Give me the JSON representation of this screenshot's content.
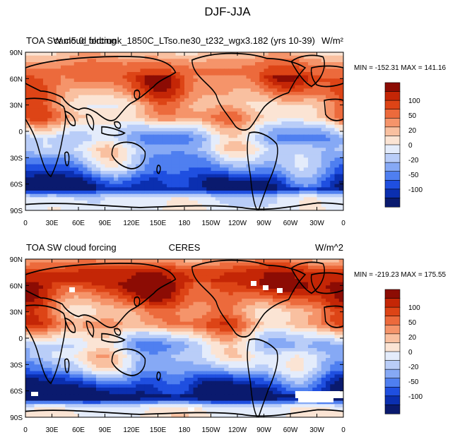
{
  "figure": {
    "title": "DJF-JJA"
  },
  "colors": {
    "levels": [
      "#0a1a6e",
      "#0b2fb0",
      "#1f4fe0",
      "#4f7ff0",
      "#86a9f5",
      "#b9cdf8",
      "#e4ecfb",
      "#fbe4d4",
      "#f9c0a0",
      "#f5946a",
      "#ec6a3c",
      "#dd4416",
      "#c42606",
      "#8c0c04"
    ],
    "coast": "#000000",
    "missing": "#ffffff"
  },
  "chart_data": [
    {
      "type": "heatmap",
      "left_title": "TOA SW cloud forcing",
      "center_title": "cam5.0_bldtrunk_1850C_LTso.ne30_t232_wgx3.182 (yrs 10-39)",
      "units": "W/m²",
      "min_max": "MIN = -152.31 MAX = 141.16",
      "x_ticks": [
        "0",
        "30E",
        "60E",
        "90E",
        "120E",
        "150E",
        "180",
        "150W",
        "120W",
        "90W",
        "60W",
        "30W",
        "0"
      ],
      "y_ticks": [
        "90N",
        "60N",
        "30N",
        "0",
        "30S",
        "60S",
        "90S"
      ],
      "xlim": [
        0,
        360
      ],
      "ylim": [
        -90,
        90
      ],
      "colorbar_labels": [
        "100",
        "50",
        "20",
        "0",
        "-20",
        "-50",
        "-100"
      ],
      "colorbar_range": [
        -130,
        130
      ],
      "zonal_profile": [
        {
          "lat": -90,
          "value": -5
        },
        {
          "lat": -75,
          "value": -15
        },
        {
          "lat": -65,
          "value": -115
        },
        {
          "lat": -55,
          "value": -95
        },
        {
          "lat": -45,
          "value": -60
        },
        {
          "lat": -35,
          "value": -40
        },
        {
          "lat": -20,
          "value": -15
        },
        {
          "lat": -8,
          "value": -40
        },
        {
          "lat": 5,
          "value": -5
        },
        {
          "lat": 15,
          "value": 40
        },
        {
          "lat": 30,
          "value": 30
        },
        {
          "lat": 45,
          "value": 60
        },
        {
          "lat": 60,
          "value": 80
        },
        {
          "lat": 75,
          "value": 60
        },
        {
          "lat": 90,
          "value": 20
        }
      ]
    },
    {
      "type": "heatmap",
      "left_title": "TOA SW cloud forcing",
      "center_title": "CERES",
      "units": "W/m^2",
      "min_max": "MIN = -219.23 MAX = 175.55",
      "x_ticks": [
        "0",
        "30E",
        "60E",
        "90E",
        "120E",
        "150E",
        "180",
        "150W",
        "120W",
        "90W",
        "60W",
        "30W",
        "0"
      ],
      "y_ticks": [
        "90N",
        "60N",
        "30N",
        "0",
        "30S",
        "60S",
        "90S"
      ],
      "xlim": [
        0,
        360
      ],
      "ylim": [
        -90,
        90
      ],
      "colorbar_labels": [
        "100",
        "50",
        "20",
        "0",
        "-20",
        "-50",
        "-100"
      ],
      "colorbar_range": [
        -130,
        130
      ],
      "zonal_profile": [
        {
          "lat": -90,
          "value": 5
        },
        {
          "lat": -78,
          "value": -5
        },
        {
          "lat": -68,
          "value": -130
        },
        {
          "lat": -58,
          "value": -110
        },
        {
          "lat": -45,
          "value": -70
        },
        {
          "lat": -35,
          "value": -30
        },
        {
          "lat": -20,
          "value": -10
        },
        {
          "lat": -8,
          "value": -30
        },
        {
          "lat": 5,
          "value": 10
        },
        {
          "lat": 15,
          "value": 55
        },
        {
          "lat": 30,
          "value": 40
        },
        {
          "lat": 45,
          "value": 75
        },
        {
          "lat": 60,
          "value": 110
        },
        {
          "lat": 75,
          "value": 100
        },
        {
          "lat": 90,
          "value": 40
        }
      ]
    }
  ]
}
